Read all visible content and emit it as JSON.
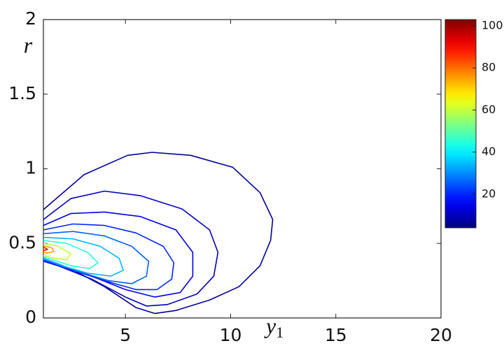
{
  "chart_data": {
    "type": "contour",
    "colormap": "jet",
    "xlabel": "y",
    "xlabel_subscript": "1",
    "ylabel": "r",
    "xlim": [
      1.1,
      20
    ],
    "xticks": [
      5,
      10,
      15,
      20
    ],
    "ylim": [
      0,
      2
    ],
    "yticks": [
      0,
      0.5,
      1,
      1.5,
      2
    ],
    "clim": [
      4,
      103
    ],
    "cticks": [
      20,
      40,
      60,
      80,
      100
    ],
    "contours": [
      {
        "level": 6,
        "x": [
          1.1,
          3.03,
          5.1,
          6.27,
          8.1,
          10.1,
          11.4,
          12.0,
          11.9,
          11.4,
          10.4,
          9.0,
          7.4,
          6.4,
          5.5,
          4.0,
          2.4,
          1.1
        ],
        "y": [
          0.726,
          0.96,
          1.09,
          1.11,
          1.09,
          1.01,
          0.84,
          0.66,
          0.52,
          0.35,
          0.21,
          0.12,
          0.05,
          0.03,
          0.07,
          0.21,
          0.33,
          0.4
        ]
      },
      {
        "level": 10,
        "x": [
          1.1,
          2.4,
          4.0,
          5.7,
          7.7,
          9.0,
          9.4,
          9.2,
          8.4,
          7.0,
          6.0,
          5.0,
          3.4,
          1.1
        ],
        "y": [
          0.66,
          0.8,
          0.85,
          0.82,
          0.73,
          0.59,
          0.44,
          0.28,
          0.16,
          0.09,
          0.08,
          0.14,
          0.26,
          0.39
        ]
      },
      {
        "level": 14,
        "x": [
          1.1,
          2.4,
          4.0,
          5.7,
          7.4,
          8.2,
          8.2,
          7.6,
          6.4,
          5.0,
          3.4,
          1.1
        ],
        "y": [
          0.62,
          0.7,
          0.71,
          0.68,
          0.59,
          0.44,
          0.28,
          0.17,
          0.14,
          0.19,
          0.28,
          0.38
        ]
      },
      {
        "level": 20,
        "x": [
          1.1,
          2.5,
          4.0,
          5.5,
          6.8,
          7.3,
          7.2,
          6.5,
          5.5,
          4.0,
          2.5,
          1.1
        ],
        "y": [
          0.59,
          0.63,
          0.62,
          0.57,
          0.48,
          0.37,
          0.26,
          0.19,
          0.19,
          0.25,
          0.32,
          0.385
        ]
      },
      {
        "level": 26,
        "x": [
          1.1,
          2.5,
          4.0,
          5.3,
          6.1,
          6.0,
          5.3,
          4.2,
          2.8,
          1.1
        ],
        "y": [
          0.565,
          0.58,
          0.55,
          0.48,
          0.38,
          0.28,
          0.23,
          0.25,
          0.31,
          0.39
        ]
      },
      {
        "level": 34,
        "x": [
          1.1,
          2.5,
          3.8,
          4.7,
          4.9,
          4.3,
          3.2,
          2.0,
          1.1
        ],
        "y": [
          0.54,
          0.53,
          0.48,
          0.4,
          0.32,
          0.28,
          0.3,
          0.35,
          0.4
        ]
      },
      {
        "level": 45,
        "x": [
          1.1,
          2.2,
          3.2,
          3.7,
          3.3,
          2.4,
          1.1
        ],
        "y": [
          0.52,
          0.5,
          0.44,
          0.37,
          0.33,
          0.35,
          0.41
        ]
      },
      {
        "level": 60,
        "x": [
          1.1,
          1.8,
          2.4,
          2.2,
          1.6,
          1.1
        ],
        "y": [
          0.5,
          0.48,
          0.43,
          0.39,
          0.4,
          0.42
        ]
      },
      {
        "level": 75,
        "x": [
          1.1,
          1.5,
          1.6,
          1.3,
          1.1
        ],
        "y": [
          0.485,
          0.47,
          0.445,
          0.435,
          0.44
        ]
      },
      {
        "level": 90,
        "x": [
          1.1,
          1.3,
          1.1
        ],
        "y": [
          0.475,
          0.46,
          0.45
        ]
      }
    ]
  }
}
